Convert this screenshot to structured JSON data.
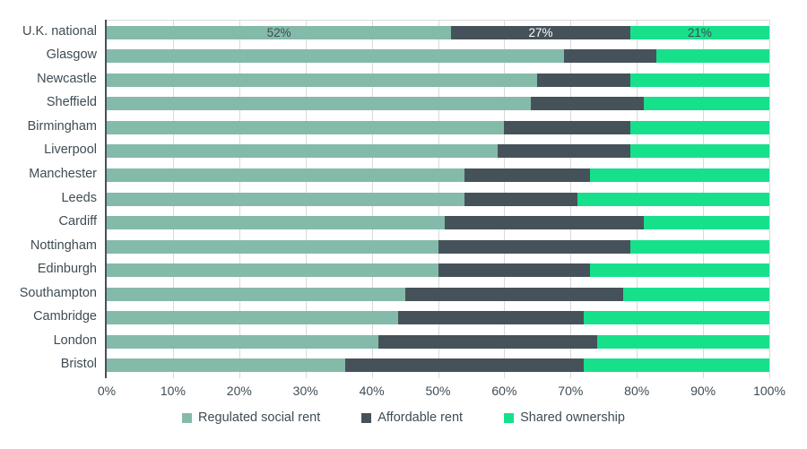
{
  "chart_data": {
    "type": "bar",
    "orientation": "horizontal",
    "stacked": true,
    "unit": "%",
    "categories": [
      "U.K. national",
      "Glasgow",
      "Newcastle",
      "Sheffield",
      "Birmingham",
      "Liverpool",
      "Manchester",
      "Leeds",
      "Cardiff",
      "Nottingham",
      "Edinburgh",
      "Southampton",
      "Cambridge",
      "London",
      "Bristol"
    ],
    "series": [
      {
        "name": "Regulated social rent",
        "values": [
          52,
          69,
          65,
          64,
          60,
          59,
          54,
          54,
          51,
          50,
          50,
          45,
          44,
          41,
          36
        ]
      },
      {
        "name": "Affordable rent",
        "values": [
          27,
          14,
          14,
          17,
          19,
          20,
          19,
          17,
          30,
          29,
          23,
          33,
          28,
          33,
          36
        ]
      },
      {
        "name": "Shared ownership",
        "values": [
          21,
          17,
          21,
          19,
          21,
          21,
          27,
          29,
          19,
          21,
          27,
          22,
          28,
          26,
          28
        ]
      }
    ],
    "x_ticks": [
      "0%",
      "10%",
      "20%",
      "30%",
      "40%",
      "50%",
      "60%",
      "70%",
      "80%",
      "90%",
      "100%"
    ],
    "xlim": [
      0,
      100
    ],
    "grid": "vertical-light",
    "legend_position": "bottom",
    "value_labels": {
      "row": "U.K. national",
      "labels": [
        "52%",
        "27%",
        "21%"
      ]
    }
  },
  "colors": {
    "series": [
      "#84baa9",
      "#46525a",
      "#17e08b"
    ],
    "gridline": "#d9d9d9",
    "axis_line": "#46525a",
    "text": "#3e4c54",
    "value_label_on_dark": "#ffffff",
    "background": "#ffffff"
  },
  "legend": {
    "items": [
      {
        "label": "Regulated social rent"
      },
      {
        "label": "Affordable rent"
      },
      {
        "label": "Shared ownership"
      }
    ]
  }
}
